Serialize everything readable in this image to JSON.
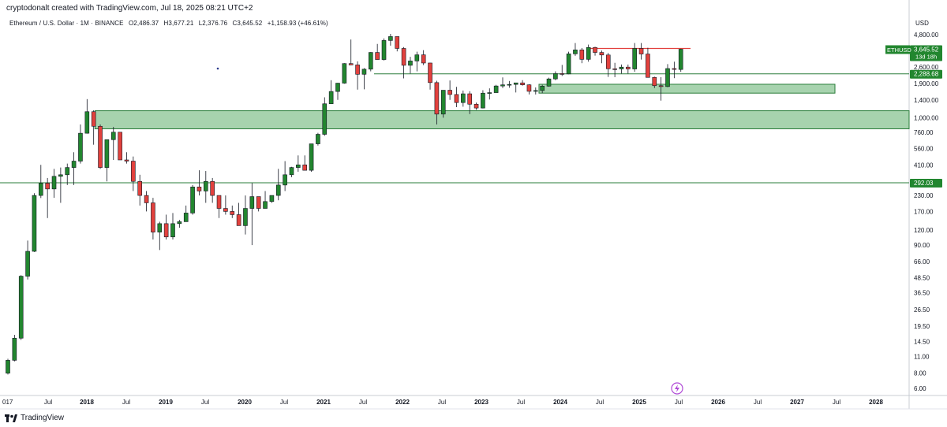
{
  "header": {
    "author_line": "cryptodonalt created with TradingView.com, Jul 18, 2025 08:21 UTC+2"
  },
  "symbol_bar": {
    "title": "Ethereum / U.S. Dollar · 1M · BINANCE",
    "open": "O2,486.37",
    "high": "H3,677.21",
    "low": "L2,376.76",
    "close": "C3,645.52",
    "change": "+1,158.93 (+46.61%)"
  },
  "price_scale": {
    "unit": "USD",
    "ticks": [
      "4,800.00",
      "3,600.00",
      "2,600.00",
      "1,900.00",
      "1,400.00",
      "1,000.00",
      "760.00",
      "560.00",
      "410.00",
      "292.03",
      "230.00",
      "170.00",
      "120.00",
      "90.00",
      "66.00",
      "48.50",
      "36.50",
      "26.50",
      "19.50",
      "14.50",
      "11.00",
      "8.00",
      "6.00"
    ]
  },
  "labels": {
    "current_symbol": "ETHUSD",
    "current_price": "3,645.52",
    "countdown": "13d 18h",
    "level_2288": "2,288.68",
    "level_292": "292.03"
  },
  "time_axis": {
    "labels": [
      "017",
      "Jul",
      "2018",
      "Jul",
      "2019",
      "Jul",
      "2020",
      "Jul",
      "2021",
      "Jul",
      "2022",
      "Jul",
      "2023",
      "Jul",
      "2024",
      "Jul",
      "2025",
      "Jul",
      "2026",
      "Jul",
      "2027",
      "Jul",
      "2028"
    ]
  },
  "footer": {
    "brand": "TradingView"
  },
  "colors": {
    "up": "#22862f",
    "down": "#e2413d",
    "zone_fill": "#a7d3ae",
    "zone_stroke": "#2a7d3a",
    "level_line": "#2a7d3a",
    "resistance": "#e2413d",
    "price_badge": "#22862f"
  },
  "chart_data": {
    "type": "candlestick",
    "scale": "log",
    "interval": "1M",
    "symbol": "ETHUSD",
    "exchange": "BINANCE",
    "y_range": [
      5.5,
      5800
    ],
    "first_candle": "2017-01",
    "candles_ohlc": [
      [
        8,
        10.5,
        7.8,
        10.2
      ],
      [
        10.2,
        16.5,
        10,
        15.5
      ],
      [
        15.5,
        51,
        15,
        50
      ],
      [
        50,
        98,
        47,
        80
      ],
      [
        80,
        240,
        79,
        230
      ],
      [
        230,
        410,
        219,
        290
      ],
      [
        290,
        320,
        150,
        260
      ],
      [
        260,
        380,
        220,
        330
      ],
      [
        330,
        390,
        200,
        340
      ],
      [
        340,
        420,
        280,
        390
      ],
      [
        390,
        520,
        280,
        440
      ],
      [
        440,
        880,
        420,
        745
      ],
      [
        745,
        1420,
        740,
        1120
      ],
      [
        1120,
        1150,
        600,
        850
      ],
      [
        850,
        880,
        380,
        390
      ],
      [
        390,
        420,
        300,
        660
      ],
      [
        660,
        840,
        450,
        760
      ],
      [
        760,
        750,
        500,
        450
      ],
      [
        450,
        520,
        420,
        440
      ],
      [
        440,
        480,
        250,
        300
      ],
      [
        300,
        340,
        190,
        230
      ],
      [
        230,
        250,
        170,
        200
      ],
      [
        200,
        220,
        100,
        115
      ],
      [
        115,
        140,
        82,
        135
      ],
      [
        135,
        160,
        100,
        105
      ],
      [
        105,
        165,
        100,
        135
      ],
      [
        135,
        145,
        125,
        140
      ],
      [
        140,
        190,
        145,
        165
      ],
      [
        165,
        280,
        160,
        270
      ],
      [
        270,
        370,
        230,
        250
      ],
      [
        250,
        365,
        200,
        300
      ],
      [
        300,
        320,
        200,
        230
      ],
      [
        230,
        230,
        150,
        180
      ],
      [
        180,
        230,
        160,
        170
      ],
      [
        170,
        190,
        150,
        160
      ],
      [
        160,
        200,
        150,
        130
      ],
      [
        130,
        230,
        110,
        180
      ],
      [
        180,
        290,
        90,
        225
      ],
      [
        225,
        200,
        170,
        180
      ],
      [
        180,
        250,
        180,
        205
      ],
      [
        205,
        225,
        200,
        230
      ],
      [
        230,
        380,
        210,
        280
      ],
      [
        280,
        440,
        250,
        340
      ],
      [
        340,
        395,
        325,
        390
      ],
      [
        390,
        490,
        360,
        410
      ],
      [
        410,
        490,
        370,
        370
      ],
      [
        370,
        600,
        360,
        610
      ],
      [
        610,
        750,
        590,
        730
      ],
      [
        730,
        1470,
        710,
        1300
      ],
      [
        1300,
        2030,
        1300,
        1640
      ],
      [
        1640,
        1930,
        1400,
        1920
      ],
      [
        1920,
        2800,
        1900,
        2780
      ],
      [
        2780,
        4380,
        2700,
        2710
      ],
      [
        2710,
        2900,
        1700,
        2270
      ],
      [
        2270,
        2550,
        1710,
        2500
      ],
      [
        2500,
        3450,
        2400,
        3430
      ],
      [
        3430,
        4030,
        3000,
        3000
      ],
      [
        3000,
        4470,
        2950,
        4300
      ],
      [
        4300,
        4870,
        3900,
        4630
      ],
      [
        4630,
        4280,
        3500,
        3700
      ],
      [
        3700,
        3800,
        2100,
        2690
      ],
      [
        2690,
        3160,
        2300,
        2920
      ],
      [
        2920,
        3480,
        2400,
        3280
      ],
      [
        3280,
        3580,
        2700,
        2810
      ],
      [
        2810,
        2820,
        1700,
        1940
      ],
      [
        1940,
        2010,
        880,
        1070
      ],
      [
        1070,
        1650,
        1000,
        1680
      ],
      [
        1680,
        2020,
        1400,
        1550
      ],
      [
        1550,
        1790,
        1220,
        1330
      ],
      [
        1330,
        1670,
        1230,
        1570
      ],
      [
        1570,
        1650,
        1070,
        1290
      ],
      [
        1290,
        1330,
        1160,
        1200
      ],
      [
        1200,
        1680,
        1190,
        1590
      ],
      [
        1590,
        1740,
        1410,
        1605
      ],
      [
        1605,
        1860,
        1620,
        1820
      ],
      [
        1820,
        2140,
        1750,
        1860
      ],
      [
        1860,
        2000,
        1760,
        1875
      ],
      [
        1875,
        1930,
        1610,
        1930
      ],
      [
        1930,
        2030,
        1830,
        1860
      ],
      [
        1860,
        1880,
        1550,
        1645
      ],
      [
        1645,
        1770,
        1550,
        1670
      ],
      [
        1670,
        1860,
        1590,
        1815
      ],
      [
        1815,
        2130,
        1800,
        2080
      ],
      [
        2080,
        2400,
        2030,
        2300
      ],
      [
        2300,
        2710,
        2200,
        2285
      ],
      [
        2285,
        3480,
        2270,
        3340
      ],
      [
        3340,
        4100,
        3220,
        3600
      ],
      [
        3600,
        3730,
        2800,
        3010
      ],
      [
        3010,
        3980,
        2880,
        3770
      ],
      [
        3770,
        3820,
        3230,
        3430
      ],
      [
        3430,
        3560,
        2800,
        3270
      ],
      [
        3270,
        3400,
        2160,
        2520
      ],
      [
        2520,
        2820,
        2150,
        2510
      ],
      [
        2510,
        2730,
        2300,
        2600
      ],
      [
        2600,
        2730,
        2300,
        2510
      ],
      [
        2510,
        4100,
        2380,
        3700
      ],
      [
        3700,
        4100,
        3000,
        3330
      ],
      [
        3330,
        3750,
        2200,
        2140
      ],
      [
        2140,
        2170,
        1750,
        1830
      ],
      [
        1830,
        2150,
        1380,
        1800
      ],
      [
        1800,
        2750,
        1780,
        2530
      ],
      [
        2530,
        2880,
        2110,
        2490
      ],
      [
        2486.37,
        3677.21,
        2376.76,
        3645.52
      ]
    ],
    "horizontal_levels": [
      2288.68,
      292.03
    ],
    "resistance_line": 3700,
    "support_zones": [
      [
        1590,
        1880
      ],
      [
        810,
        1140
      ]
    ]
  }
}
